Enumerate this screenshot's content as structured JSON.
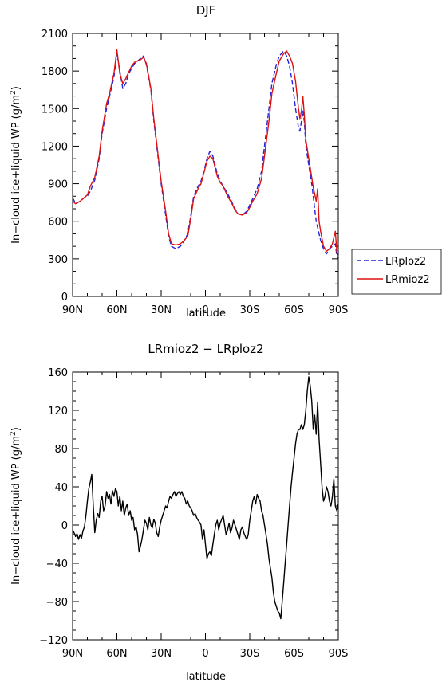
{
  "chart_data": [
    {
      "type": "line",
      "title": "DJF",
      "xlabel": "latitude",
      "ylabel": "In-cloud ice+liquid WP (g/m²)",
      "ylabel_parts": {
        "main": "In−cloud ice+liquid WP (g/m",
        "sup": "2",
        "end": ")"
      },
      "xlim": [
        90,
        -90
      ],
      "ylim": [
        0,
        2100
      ],
      "xticks": [
        90,
        60,
        30,
        0,
        -30,
        -60,
        -90
      ],
      "xtick_labels": [
        "90N",
        "60N",
        "30N",
        "0",
        "30S",
        "60S",
        "90S"
      ],
      "yticks": [
        0,
        300,
        600,
        900,
        1200,
        1500,
        1800,
        2100
      ],
      "ytick_labels": [
        "0",
        "300",
        "600",
        "900",
        "1200",
        "1500",
        "1800",
        "2100"
      ],
      "legend": "right",
      "series": [
        {
          "name": "LRploz2",
          "color": "#2222dd",
          "dash": "dashed",
          "x": [
            90,
            88,
            85,
            82,
            80,
            78,
            75,
            72,
            70,
            67,
            65,
            62,
            60,
            58,
            56,
            54,
            52,
            50,
            48,
            46,
            44,
            42,
            40,
            37,
            35,
            32,
            30,
            27,
            25,
            23,
            20,
            17,
            15,
            12,
            10,
            8,
            5,
            3,
            1,
            -1,
            -3,
            -5,
            -8,
            -10,
            -12,
            -15,
            -18,
            -20,
            -22,
            -25,
            -28,
            -30,
            -32,
            -35,
            -38,
            -40,
            -43,
            -45,
            -48,
            -50,
            -53,
            -55,
            -57,
            -59,
            -61,
            -63,
            -64,
            -65,
            -66,
            -67,
            -68,
            -70,
            -72,
            -73,
            -74,
            -75,
            -76,
            -77,
            -78,
            -80,
            -82,
            -84,
            -86,
            -88,
            -89,
            -90
          ],
          "y": [
            790,
            740,
            760,
            790,
            800,
            840,
            930,
            1100,
            1300,
            1500,
            1600,
            1750,
            1950,
            1800,
            1660,
            1700,
            1780,
            1820,
            1860,
            1880,
            1900,
            1920,
            1850,
            1650,
            1400,
            1100,
            900,
            650,
            480,
            400,
            380,
            400,
            430,
            500,
            640,
            800,
            880,
            920,
            1000,
            1100,
            1160,
            1120,
            980,
            920,
            880,
            820,
            750,
            700,
            660,
            650,
            680,
            730,
            780,
            860,
            1000,
            1200,
            1500,
            1700,
            1850,
            1920,
            1960,
            1920,
            1840,
            1700,
            1500,
            1350,
            1320,
            1400,
            1480,
            1400,
            1200,
            1050,
            900,
            800,
            700,
            600,
            550,
            500,
            450,
            380,
            340,
            380,
            400,
            420,
            320,
            300
          ]
        },
        {
          "name": "LRmioz2",
          "color": "#dd1111",
          "dash": "solid",
          "x": [
            90,
            88,
            85,
            82,
            80,
            78,
            75,
            72,
            70,
            67,
            65,
            62,
            60,
            58,
            56,
            54,
            52,
            50,
            48,
            46,
            44,
            42,
            40,
            37,
            35,
            32,
            30,
            27,
            25,
            23,
            20,
            17,
            15,
            12,
            10,
            8,
            5,
            3,
            1,
            -1,
            -3,
            -5,
            -8,
            -10,
            -12,
            -15,
            -18,
            -20,
            -22,
            -25,
            -28,
            -30,
            -32,
            -35,
            -38,
            -40,
            -43,
            -45,
            -48,
            -50,
            -53,
            -55,
            -57,
            -59,
            -61,
            -63,
            -64,
            -65,
            -66,
            -67,
            -68,
            -70,
            -72,
            -73,
            -74,
            -75,
            -76,
            -77,
            -78,
            -80,
            -82,
            -84,
            -86,
            -88,
            -89,
            -90
          ],
          "y": [
            760,
            740,
            760,
            790,
            810,
            880,
            950,
            1120,
            1320,
            1540,
            1620,
            1780,
            1970,
            1780,
            1700,
            1740,
            1790,
            1840,
            1870,
            1880,
            1890,
            1910,
            1860,
            1660,
            1420,
            1120,
            920,
            680,
            500,
            420,
            410,
            420,
            440,
            480,
            620,
            780,
            860,
            900,
            990,
            1080,
            1120,
            1100,
            960,
            910,
            880,
            800,
            740,
            690,
            660,
            650,
            670,
            710,
            760,
            820,
            940,
            1120,
            1400,
            1620,
            1780,
            1880,
            1940,
            1960,
            1920,
            1860,
            1720,
            1500,
            1420,
            1480,
            1600,
            1450,
            1250,
            1100,
            950,
            870,
            820,
            760,
            860,
            600,
            520,
            400,
            360,
            380,
            420,
            520,
            350,
            330
          ]
        }
      ]
    },
    {
      "type": "line",
      "title": "LRmioz2 − LRploz2",
      "xlabel": "latitude",
      "ylabel": "In-cloud ice+liquid WP (g/m²)",
      "ylabel_parts": {
        "main": "In−cloud ice+liquid WP (g/m",
        "sup": "2",
        "end": ")"
      },
      "xlim": [
        90,
        -90
      ],
      "ylim": [
        -120,
        160
      ],
      "xticks": [
        90,
        60,
        30,
        0,
        -30,
        -60,
        -90
      ],
      "xtick_labels": [
        "90N",
        "60N",
        "30N",
        "0",
        "30S",
        "60S",
        "90S"
      ],
      "yticks": [
        -120,
        -80,
        -40,
        0,
        40,
        80,
        120,
        160
      ],
      "ytick_labels": [
        "−120",
        "−80",
        "−40",
        "0",
        "40",
        "80",
        "120",
        "160"
      ],
      "series": [
        {
          "color": "#000000",
          "dash": "solid",
          "x": [
            90,
            89,
            88,
            87,
            86,
            85,
            84,
            83,
            82,
            81,
            80,
            79,
            78,
            77,
            76,
            75,
            74,
            73,
            72,
            71,
            70,
            69,
            68,
            67,
            66,
            65,
            64,
            63,
            62,
            61,
            60,
            59,
            58,
            57,
            56,
            55,
            54,
            53,
            52,
            51,
            50,
            49,
            48,
            47,
            46,
            45,
            44,
            43,
            42,
            41,
            40,
            39,
            38,
            37,
            36,
            35,
            34,
            33,
            32,
            31,
            30,
            29,
            28,
            27,
            26,
            25,
            24,
            23,
            22,
            21,
            20,
            19,
            18,
            17,
            16,
            15,
            14,
            13,
            12,
            11,
            10,
            9,
            8,
            7,
            6,
            5,
            4,
            3,
            2,
            1,
            0,
            -1,
            -2,
            -3,
            -4,
            -5,
            -6,
            -7,
            -8,
            -9,
            -10,
            -11,
            -12,
            -13,
            -14,
            -15,
            -16,
            -17,
            -18,
            -19,
            -20,
            -21,
            -22,
            -23,
            -24,
            -25,
            -26,
            -27,
            -28,
            -29,
            -30,
            -31,
            -32,
            -33,
            -34,
            -35,
            -36,
            -37,
            -38,
            -39,
            -40,
            -41,
            -42,
            -43,
            -44,
            -45,
            -46,
            -47,
            -48,
            -49,
            -50,
            -51,
            -52,
            -53,
            -54,
            -55,
            -56,
            -57,
            -58,
            -59,
            -60,
            -61,
            -62,
            -63,
            -64,
            -65,
            -66,
            -67,
            -68,
            -69,
            -70,
            -71,
            -72,
            -73,
            -74,
            -75,
            -76,
            -77,
            -78,
            -79,
            -80,
            -81,
            -82,
            -83,
            -84,
            -85,
            -86,
            -87,
            -88,
            -89,
            -90
          ],
          "y": [
            -5,
            -8,
            -12,
            -9,
            -15,
            -10,
            -14,
            -6,
            -2,
            10,
            25,
            38,
            45,
            53,
            20,
            -8,
            5,
            12,
            8,
            25,
            30,
            15,
            20,
            35,
            28,
            32,
            22,
            36,
            30,
            38,
            35,
            20,
            30,
            15,
            25,
            10,
            18,
            22,
            10,
            15,
            5,
            8,
            -5,
            -2,
            -10,
            -28,
            -22,
            -15,
            -5,
            5,
            2,
            -5,
            8,
            0,
            -3,
            6,
            2,
            -8,
            -12,
            -2,
            5,
            10,
            15,
            20,
            18,
            25,
            30,
            28,
            32,
            35,
            30,
            33,
            35,
            32,
            35,
            30,
            28,
            22,
            25,
            20,
            18,
            15,
            10,
            12,
            8,
            5,
            3,
            0,
            -15,
            -5,
            -20,
            -35,
            -30,
            -28,
            -32,
            -20,
            -10,
            0,
            5,
            -5,
            2,
            6,
            10,
            0,
            -10,
            -5,
            2,
            -8,
            -3,
            5,
            0,
            -5,
            -10,
            -15,
            -5,
            -2,
            -8,
            -12,
            -15,
            -10,
            5,
            15,
            25,
            30,
            22,
            32,
            28,
            25,
            15,
            10,
            0,
            -10,
            -20,
            -35,
            -45,
            -55,
            -70,
            -80,
            -85,
            -90,
            -92,
            -98,
            -80,
            -60,
            -40,
            -20,
            0,
            20,
            40,
            55,
            70,
            85,
            95,
            100,
            100,
            105,
            100,
            105,
            120,
            140,
            155,
            145,
            130,
            100,
            115,
            95,
            128,
            90,
            65,
            40,
            25,
            30,
            40,
            35,
            25,
            20,
            30,
            48,
            20,
            15,
            22
          ]
        }
      ]
    }
  ]
}
